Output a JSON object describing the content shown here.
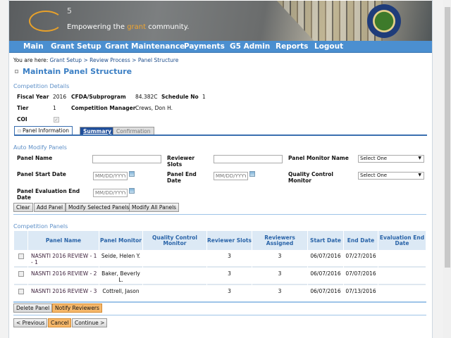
{
  "banner": {
    "logo": "G5",
    "tagline_pre": "Empowering the ",
    "tagline_accent": "grant",
    "tagline_post": " community."
  },
  "nav": [
    "Main",
    "Grant Setup",
    "Grant Maintenance",
    "Payments",
    "G5 Admin",
    "Reports",
    "Logout"
  ],
  "breadcrumb": {
    "prefix": "You are here:",
    "items": [
      "Grant Setup",
      "Review Process",
      "Panel Structure"
    ],
    "sep": ">"
  },
  "page_title": "Maintain Panel Structure",
  "competition": {
    "section": "Competition Details",
    "fiscal_year_label": "Fiscal Year",
    "fiscal_year": "2016",
    "cfda_label": "CFDA/Subprogram",
    "cfda": "84.382C",
    "schedule_label": "Schedule No",
    "schedule": "1",
    "tier_label": "Tier",
    "tier": "1",
    "manager_label": "Competition Manager",
    "manager": "Crews, Don H.",
    "coi_label": "COI",
    "coi_checked": true
  },
  "tabs": [
    "Panel Information",
    "Summary",
    "Confirmation"
  ],
  "auto": {
    "section": "Auto Modify Panels",
    "panel_name": "Panel Name",
    "reviewer_slots": "Reviewer Slots",
    "panel_monitor": "Panel Monitor Name",
    "start": "Panel Start Date",
    "end": "Panel End Date",
    "qc": "Quality Control Monitor",
    "eval_end": "Panel Evaluation End Date",
    "date_placeholder": "MM/DD/YYYY",
    "select_default": "Select One",
    "buttons": [
      "Clear",
      "Add Panel",
      "Modify Selected Panels",
      "Modify All Panels"
    ]
  },
  "panels": {
    "section": "Competition Panels",
    "headers": [
      "Panel Name",
      "Panel Monitor",
      "Quality Control Monitor",
      "Reviewer Slots",
      "Reviewers Assigned",
      "Start Date",
      "End Date",
      "Evaluation End Date"
    ],
    "rows": [
      {
        "name": "NASNTI 2016 REVIEW - 1 - 1",
        "monitor": "Seide, Helen Y.",
        "qc": "",
        "slots": "3",
        "assigned": "3",
        "start": "06/07/2016",
        "end": "07/27/2016",
        "eval": ""
      },
      {
        "name": "NASNTI 2016 REVIEW - 2",
        "monitor": "Baker, Beverly L.",
        "qc": "",
        "slots": "3",
        "assigned": "3",
        "start": "06/07/2016",
        "end": "07/07/2016",
        "eval": ""
      },
      {
        "name": "NASNTI 2016 REVIEW - 3",
        "monitor": "Cottrell, Jason",
        "qc": "",
        "slots": "3",
        "assigned": "3",
        "start": "06/07/2016",
        "end": "07/13/2016",
        "eval": ""
      }
    ],
    "buttons": [
      "Delete Panel",
      "Notify Reviewers"
    ]
  },
  "footer_buttons": [
    "< Previous",
    "Cancel",
    "Continue >"
  ],
  "colors": {
    "nav": "#4b8fd0",
    "accent": "#f6b86b",
    "title": "#3b7fc4"
  }
}
